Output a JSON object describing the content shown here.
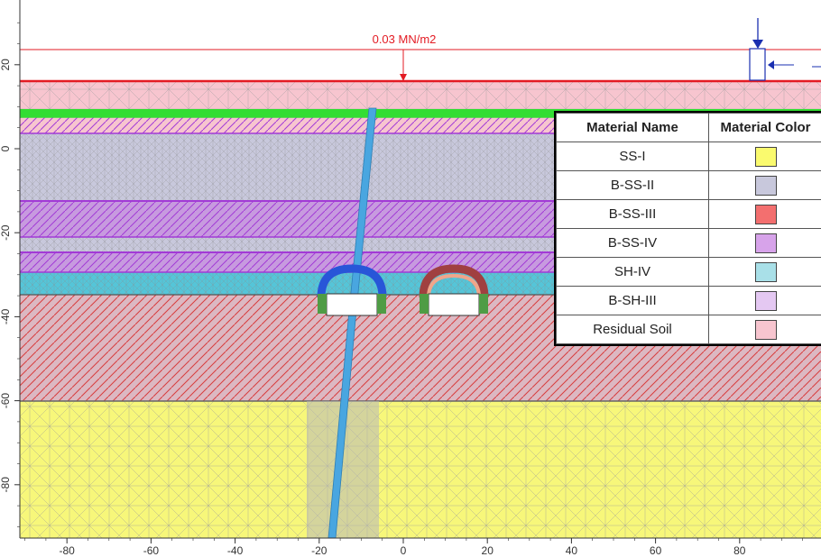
{
  "load": {
    "label": "0.03 MN/m2"
  },
  "axes": {
    "x_ticks": [
      "-80",
      "-60",
      "-40",
      "-20",
      "0",
      "20",
      "40",
      "60",
      "80"
    ],
    "y_ticks": [
      "20",
      "0",
      "-20",
      "-40",
      "-60",
      "-80"
    ]
  },
  "legend": {
    "headers": {
      "name": "Material Name",
      "color": "Material Color"
    },
    "rows": [
      {
        "name": "SS-I",
        "color": "#fafa6e"
      },
      {
        "name": "B-SS-II",
        "color": "#c8c8dc"
      },
      {
        "name": "B-SS-III",
        "color": "#f36f6f"
      },
      {
        "name": "B-SS-IV",
        "color": "#d7a3ea"
      },
      {
        "name": "SH-IV",
        "color": "#a9e0e8"
      },
      {
        "name": "B-SH-III",
        "color": "#e4c8f2"
      },
      {
        "name": "Residual Soil",
        "color": "#f7c5cf"
      }
    ]
  },
  "colors": {
    "residual_soil": "#f7c5cf",
    "b_ss_ii": "#c8c8dc",
    "b_ss_iv": "#c79adf",
    "sh_iv": "#55c5d8",
    "b_ss_iii": "#dcb8c2",
    "ss_i": "#f7f77a",
    "load_line": "#e31b23",
    "pile": "#49a6e0",
    "mesh": "#9a9a9a",
    "green_line": "#33dd33",
    "purple_line": "#a23ad6",
    "red_line": "#dd2222"
  }
}
